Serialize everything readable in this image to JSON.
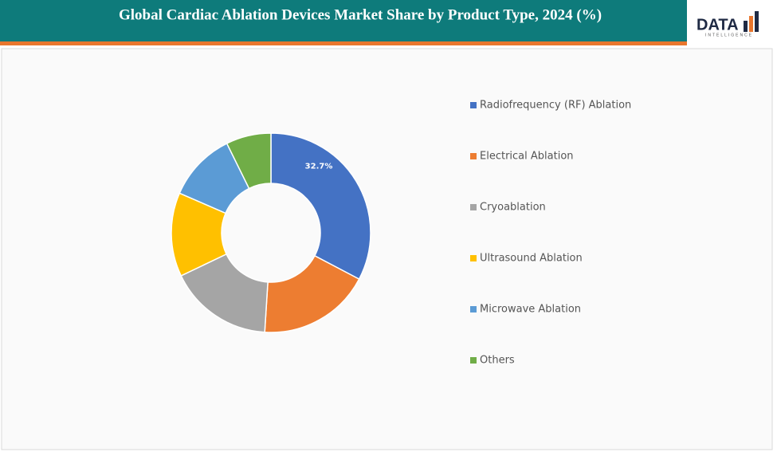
{
  "chart_data": {
    "type": "donut",
    "title": "Global Cardiac Ablation Devices Market Share by Product Type, 2024 (%)",
    "categories": [
      "Radiofrequency (RF) Ablation",
      "Electrical Ablation",
      "Cryoablation",
      "Ultrasound Ablation",
      "Microwave Ablation",
      "Others"
    ],
    "values": [
      32.7,
      18.3,
      16.9,
      13.6,
      11.2,
      7.3
    ],
    "value_labels": [
      "32.7%",
      null,
      null,
      null,
      null,
      null
    ],
    "colors": [
      "#4472c4",
      "#ed7d31",
      "#a5a5a5",
      "#ffc000",
      "#5b9bd5",
      "#70ad47"
    ],
    "legend": "right"
  },
  "logo": {
    "text": "DATA",
    "subtext": "INTELLIGENCE"
  }
}
